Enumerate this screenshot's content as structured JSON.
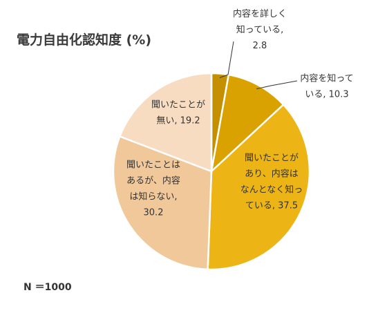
{
  "chart_data": {
    "type": "pie",
    "title": "電力自由化認知度 (%)",
    "note": "N ＝1000",
    "start_angle_deg": 0,
    "direction": "clockwise",
    "slices": [
      {
        "label_lines": [
          "内容を詳しく",
          "知っている,",
          "2.8"
        ],
        "value": 2.8,
        "color": "#c49000"
      },
      {
        "label_lines": [
          "内容を知って",
          "いる, 10.3"
        ],
        "value": 10.3,
        "color": "#d9a200"
      },
      {
        "label_lines": [
          "聞いたことが",
          "あり、内容は",
          "なんとなく知っ",
          "ている, 37.5"
        ],
        "value": 37.5,
        "color": "#edb415"
      },
      {
        "label_lines": [
          "聞いたことは",
          "あるが、内容",
          "は知らない,",
          "30.2"
        ],
        "value": 30.2,
        "color": "#f0c89a"
      },
      {
        "label_lines": [
          "聞いたことが",
          "無い, 19.2"
        ],
        "value": 19.2,
        "color": "#f8dcc2"
      }
    ]
  }
}
